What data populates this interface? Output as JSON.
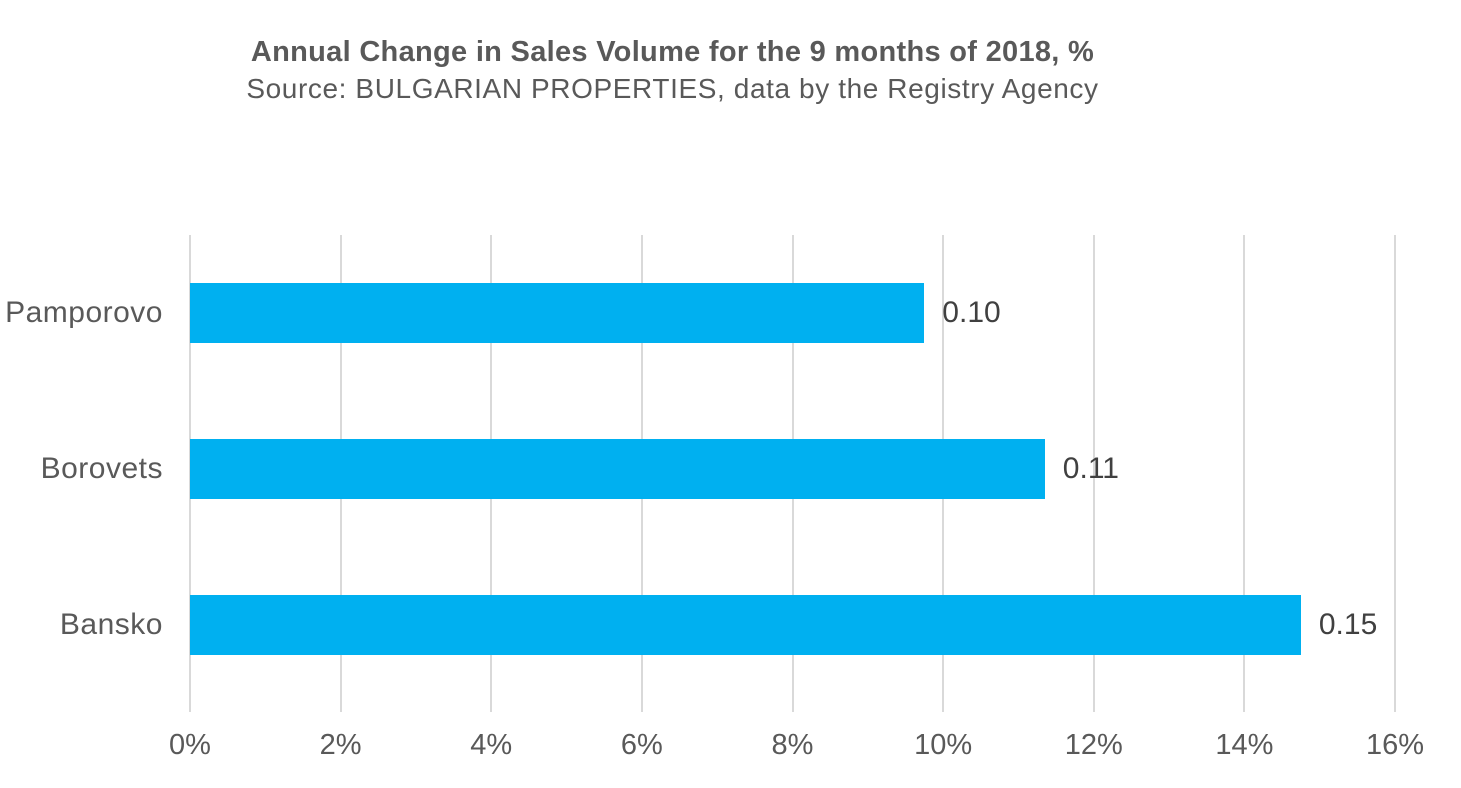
{
  "header": {
    "title": "Annual Change in Sales Volume for the 9 months of 2018, %",
    "subtitle": "Source: BULGARIAN PROPERTIES, data by the Registry Agency"
  },
  "chart_data": {
    "type": "bar",
    "orientation": "horizontal",
    "title": "Annual Change in Sales Volume for the 9 months of 2018, %",
    "subtitle": "Source: BULGARIAN PROPERTIES, data by the Registry Agency",
    "categories": [
      "Pamporovo",
      "Borovets",
      "Bansko"
    ],
    "values": [
      9.75,
      11.35,
      14.75
    ],
    "data_labels": [
      "0.10",
      "0.11",
      "0.15"
    ],
    "x_tick_labels": [
      "0%",
      "2%",
      "4%",
      "6%",
      "8%",
      "10%",
      "12%",
      "14%",
      "16%"
    ],
    "xlim": [
      0,
      16
    ],
    "xlabel": "",
    "ylabel": "",
    "grid": true,
    "legend": false,
    "colors": {
      "bar": "#00b0f0",
      "gridline": "#d9d9d9",
      "axis_text": "#595959",
      "data_label_text": "#404040"
    }
  }
}
